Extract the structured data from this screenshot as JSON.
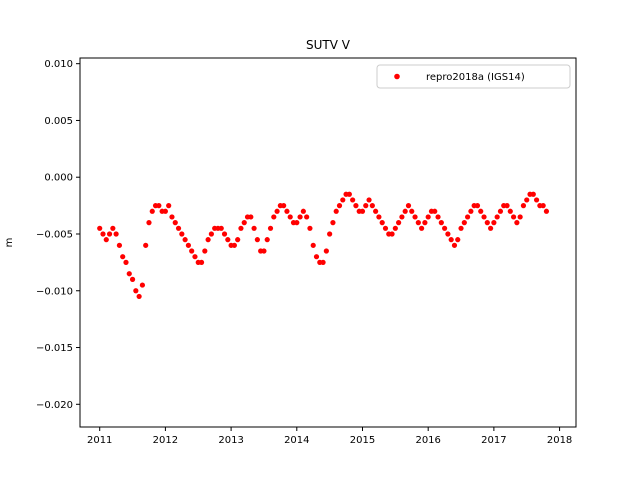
{
  "chart_data": {
    "type": "scatter",
    "title": "SUTV V",
    "xlabel": "",
    "ylabel": "m",
    "xlim": [
      2010.7,
      2018.25
    ],
    "ylim": [
      -0.022,
      0.0105
    ],
    "x_ticks": [
      2011,
      2012,
      2013,
      2014,
      2015,
      2016,
      2017,
      2018
    ],
    "x_tick_labels": [
      "2011",
      "2012",
      "2013",
      "2014",
      "2015",
      "2016",
      "2017",
      "2018"
    ],
    "y_ticks": [
      -0.02,
      -0.015,
      -0.01,
      -0.005,
      0.0,
      0.005,
      0.01
    ],
    "y_tick_labels": [
      "−0.020",
      "−0.015",
      "−0.010",
      "−0.005",
      "0.000",
      "0.005",
      "0.010"
    ],
    "grid": false,
    "legend_position": "top-right",
    "series": [
      {
        "name": "repro2018a (IGS14)",
        "color": "#ff0000",
        "marker": "circle",
        "x": [
          2011.0,
          2011.05,
          2011.1,
          2011.15,
          2011.2,
          2011.25,
          2011.3,
          2011.35,
          2011.4,
          2011.45,
          2011.5,
          2011.55,
          2011.6,
          2011.65,
          2011.7,
          2011.75,
          2011.8,
          2011.85,
          2011.9,
          2011.95,
          2012.0,
          2012.05,
          2012.1,
          2012.15,
          2012.2,
          2012.25,
          2012.3,
          2012.35,
          2012.4,
          2012.45,
          2012.5,
          2012.55,
          2012.6,
          2012.65,
          2012.7,
          2012.75,
          2012.8,
          2012.85,
          2012.9,
          2012.95,
          2013.0,
          2013.05,
          2013.1,
          2013.15,
          2013.2,
          2013.25,
          2013.3,
          2013.35,
          2013.4,
          2013.45,
          2013.5,
          2013.55,
          2013.6,
          2013.65,
          2013.7,
          2013.75,
          2013.8,
          2013.85,
          2013.9,
          2013.95,
          2014.0,
          2014.05,
          2014.1,
          2014.15,
          2014.2,
          2014.25,
          2014.3,
          2014.35,
          2014.4,
          2014.45,
          2014.5,
          2014.55,
          2014.6,
          2014.65,
          2014.7,
          2014.75,
          2014.8,
          2014.85,
          2014.9,
          2014.95,
          2015.0,
          2015.05,
          2015.1,
          2015.15,
          2015.2,
          2015.25,
          2015.3,
          2015.35,
          2015.4,
          2015.45,
          2015.5,
          2015.55,
          2015.6,
          2015.65,
          2015.7,
          2015.75,
          2015.8,
          2015.85,
          2015.9,
          2015.95,
          2016.0,
          2016.05,
          2016.1,
          2016.15,
          2016.2,
          2016.25,
          2016.3,
          2016.35,
          2016.4,
          2016.45,
          2016.5,
          2016.55,
          2016.6,
          2016.65,
          2016.7,
          2016.75,
          2016.8,
          2016.85,
          2016.9,
          2016.95,
          2017.0,
          2017.05,
          2017.1,
          2017.15,
          2017.2,
          2017.25,
          2017.3,
          2017.35,
          2017.4,
          2017.45,
          2017.5,
          2017.55,
          2017.6,
          2017.65,
          2017.7,
          2017.75,
          2017.8
        ],
        "y": [
          -0.0045,
          -0.005,
          -0.0055,
          -0.005,
          -0.0045,
          -0.005,
          -0.006,
          -0.007,
          -0.0075,
          -0.0085,
          -0.009,
          -0.01,
          -0.0105,
          -0.0095,
          -0.006,
          -0.004,
          -0.003,
          -0.0025,
          -0.0025,
          -0.003,
          -0.003,
          -0.0025,
          -0.0035,
          -0.004,
          -0.0045,
          -0.005,
          -0.0055,
          -0.006,
          -0.0065,
          -0.007,
          -0.0075,
          -0.0075,
          -0.0065,
          -0.0055,
          -0.005,
          -0.0045,
          -0.0045,
          -0.0045,
          -0.005,
          -0.0055,
          -0.006,
          -0.006,
          -0.0055,
          -0.0045,
          -0.004,
          -0.0035,
          -0.0035,
          -0.0045,
          -0.0055,
          -0.0065,
          -0.0065,
          -0.0055,
          -0.0045,
          -0.0035,
          -0.003,
          -0.0025,
          -0.0025,
          -0.003,
          -0.0035,
          -0.004,
          -0.004,
          -0.0035,
          -0.003,
          -0.0035,
          -0.0045,
          -0.006,
          -0.007,
          -0.0075,
          -0.0075,
          -0.0065,
          -0.005,
          -0.004,
          -0.003,
          -0.0025,
          -0.002,
          -0.0015,
          -0.0015,
          -0.002,
          -0.0025,
          -0.003,
          -0.003,
          -0.0025,
          -0.002,
          -0.0025,
          -0.003,
          -0.0035,
          -0.004,
          -0.0045,
          -0.005,
          -0.005,
          -0.0045,
          -0.004,
          -0.0035,
          -0.003,
          -0.0025,
          -0.003,
          -0.0035,
          -0.004,
          -0.0045,
          -0.004,
          -0.0035,
          -0.003,
          -0.003,
          -0.0035,
          -0.004,
          -0.0045,
          -0.005,
          -0.0055,
          -0.006,
          -0.0055,
          -0.0045,
          -0.004,
          -0.0035,
          -0.003,
          -0.0025,
          -0.0025,
          -0.003,
          -0.0035,
          -0.004,
          -0.0045,
          -0.004,
          -0.0035,
          -0.003,
          -0.0025,
          -0.0025,
          -0.003,
          -0.0035,
          -0.004,
          -0.0035,
          -0.0025,
          -0.002,
          -0.0015,
          -0.0015,
          -0.002,
          -0.0025,
          -0.0025,
          -0.003
        ]
      }
    ]
  }
}
